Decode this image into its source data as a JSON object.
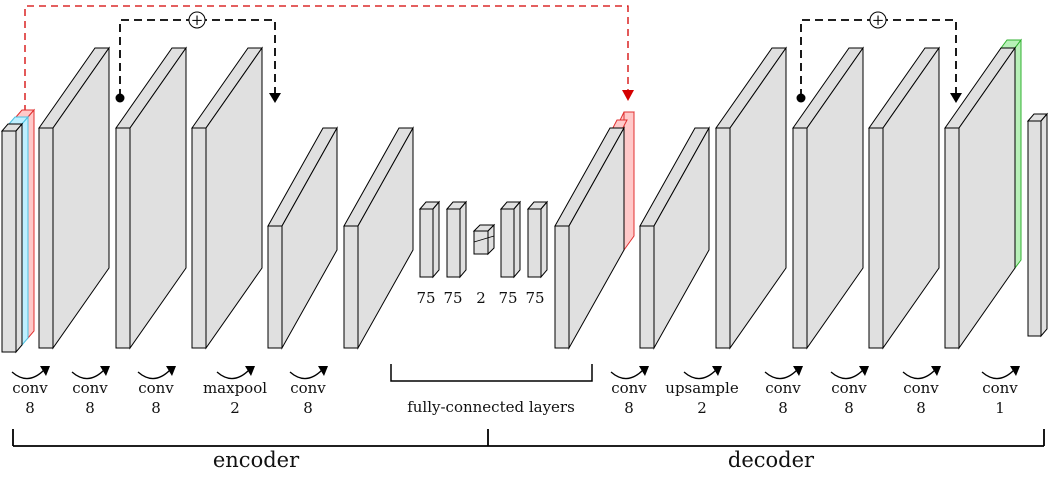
{
  "diagram": {
    "blocks": [
      {
        "id": "input",
        "label": "conv",
        "value": "8",
        "tint": "#bfefff"
      },
      {
        "id": "b1",
        "label": "conv",
        "value": "8"
      },
      {
        "id": "b2",
        "label": "conv",
        "value": "8"
      },
      {
        "id": "b3",
        "label": "maxpool",
        "value": "2"
      },
      {
        "id": "b4",
        "label": "conv",
        "value": "8"
      },
      {
        "id": "b5",
        "label": "",
        "value": ""
      },
      {
        "id": "d1",
        "label": "conv",
        "value": "8",
        "tint": "#ffc9c9"
      },
      {
        "id": "d2",
        "label": "upsample",
        "value": "2"
      },
      {
        "id": "d3",
        "label": "conv",
        "value": "8"
      },
      {
        "id": "d4",
        "label": "conv",
        "value": "8"
      },
      {
        "id": "d5",
        "label": "conv",
        "value": "8"
      },
      {
        "id": "d6",
        "label": "conv",
        "value": "1",
        "tint": "#b8f0b8"
      }
    ],
    "fc_sizes": [
      "75",
      "75",
      "2",
      "75",
      "75"
    ],
    "fc_caption": "fully-connected layers",
    "encoder_label": "encoder",
    "decoder_label": "decoder",
    "skip_symbol": "+",
    "colors": {
      "face": "#e0e0e0",
      "stroke": "#000000",
      "skip_red": "#d40000",
      "skip_black": "#000000",
      "tint_cyan": "#bfefff",
      "tint_red": "#ffc9c9",
      "tint_green": "#b8f0b8"
    }
  }
}
